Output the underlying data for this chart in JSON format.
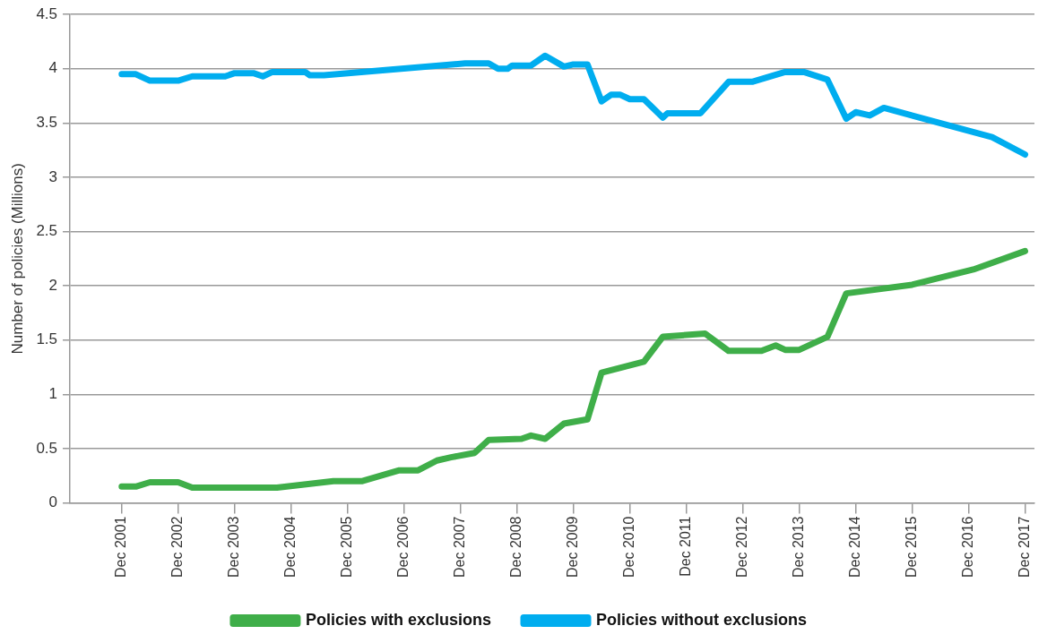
{
  "chart_data": {
    "type": "line",
    "ylabel": "Number of policies (Millions)",
    "xlim": [
      "2001-01",
      "2018-02"
    ],
    "xticks": [
      {
        "value": "2001-12",
        "label": "Dec 2001"
      },
      {
        "value": "2002-12",
        "label": "Dec 2002"
      },
      {
        "value": "2003-12",
        "label": "Dec 2003"
      },
      {
        "value": "2004-12",
        "label": "Dec 2004"
      },
      {
        "value": "2005-12",
        "label": "Dec 2005"
      },
      {
        "value": "2006-12",
        "label": "Dec 2006"
      },
      {
        "value": "2007-12",
        "label": "Dec 2007"
      },
      {
        "value": "2008-12",
        "label": "Dec 2008"
      },
      {
        "value": "2009-12",
        "label": "Dec 2009"
      },
      {
        "value": "2010-12",
        "label": "Dec 2010"
      },
      {
        "value": "2011-12",
        "label": "Dec 2011"
      },
      {
        "value": "2012-12",
        "label": "Dec 2012"
      },
      {
        "value": "2013-12",
        "label": "Dec 2013"
      },
      {
        "value": "2014-12",
        "label": "Dec 2014"
      },
      {
        "value": "2015-12",
        "label": "Dec 2015"
      },
      {
        "value": "2016-12",
        "label": "Dec 2016"
      },
      {
        "value": "2017-12",
        "label": "Dec 2017"
      }
    ],
    "ylim": [
      0,
      4.5
    ],
    "yticks": [
      0,
      0.5,
      1,
      1.5,
      2,
      2.5,
      3,
      3.5,
      4,
      4.5
    ],
    "grid": "y",
    "legend": "bottom",
    "line_style": "solid",
    "series": [
      {
        "name": "Policies with exclusions",
        "color": "#3fae49",
        "x": [
          "2001-12",
          "2002-03",
          "2002-06",
          "2002-12",
          "2003-03",
          "2004-09",
          "2005-09",
          "2006-03",
          "2006-11",
          "2007-03",
          "2007-07",
          "2007-10",
          "2008-03",
          "2008-06",
          "2009-01",
          "2009-03",
          "2009-06",
          "2009-10",
          "2010-03",
          "2010-06",
          "2011-03",
          "2011-07",
          "2012-04",
          "2012-09",
          "2013-04",
          "2013-07",
          "2013-09",
          "2013-12",
          "2014-06",
          "2014-10",
          "2015-12",
          "2017-01",
          "2017-12"
        ],
        "values": [
          0.15,
          0.15,
          0.19,
          0.19,
          0.14,
          0.14,
          0.2,
          0.2,
          0.3,
          0.3,
          0.39,
          0.42,
          0.46,
          0.58,
          0.59,
          0.62,
          0.59,
          0.73,
          0.77,
          1.2,
          1.3,
          1.53,
          1.56,
          1.4,
          1.4,
          1.45,
          1.41,
          1.41,
          1.53,
          1.93,
          2.01,
          2.15,
          2.32
        ]
      },
      {
        "name": "Policies without exclusions",
        "color": "#00adef",
        "x": [
          "2001-12",
          "2002-03",
          "2002-06",
          "2002-12",
          "2003-03",
          "2003-10",
          "2003-12",
          "2004-04",
          "2004-06",
          "2004-08",
          "2005-03",
          "2005-04",
          "2005-07",
          "2008-01",
          "2008-06",
          "2008-08",
          "2008-10",
          "2008-11",
          "2009-03",
          "2009-06",
          "2009-10",
          "2009-12",
          "2010-03",
          "2010-06",
          "2010-08",
          "2010-10",
          "2010-12",
          "2011-03",
          "2011-07",
          "2011-08",
          "2012-03",
          "2012-09",
          "2013-02",
          "2013-09",
          "2014-01",
          "2014-06",
          "2014-10",
          "2014-12",
          "2015-03",
          "2015-06",
          "2017-05",
          "2017-12"
        ],
        "values": [
          3.95,
          3.95,
          3.89,
          3.89,
          3.93,
          3.93,
          3.96,
          3.96,
          3.93,
          3.97,
          3.97,
          3.94,
          3.94,
          4.05,
          4.05,
          4.0,
          4.0,
          4.03,
          4.03,
          4.12,
          4.02,
          4.04,
          4.04,
          3.7,
          3.76,
          3.76,
          3.72,
          3.72,
          3.55,
          3.59,
          3.59,
          3.88,
          3.88,
          3.97,
          3.97,
          3.9,
          3.54,
          3.6,
          3.57,
          3.64,
          3.37,
          3.21
        ]
      }
    ]
  }
}
